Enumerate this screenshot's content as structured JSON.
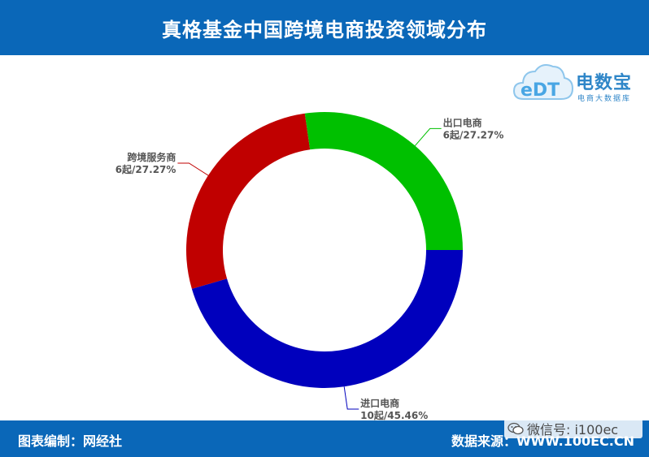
{
  "header": {
    "title": "真格基金中国跨境电商投资领域分布"
  },
  "footer": {
    "left": "图表编制：网经社",
    "right": "数据来源：WWW.100EC.CN"
  },
  "watermark": {
    "text": "微信号: i100ec",
    "icon": "wechat-icon"
  },
  "logo": {
    "name": "电数宝",
    "subtitle": "电商大数据库",
    "mark_text": "eDT",
    "icon": "cloud-icon"
  },
  "chart_data": {
    "type": "pie",
    "donut": true,
    "categories": [
      "进口电商",
      "跨境服务商",
      "出口电商"
    ],
    "values": [
      10,
      6,
      6
    ],
    "units": "起",
    "labels": [
      {
        "name": "进口电商",
        "value_text": "10起/45.46%"
      },
      {
        "name": "跨境服务商",
        "value_text": "6起/27.27%"
      },
      {
        "name": "出口电商",
        "value_text": "6起/27.27%"
      }
    ],
    "colors": [
      "#0000bd",
      "#c00000",
      "#00c000"
    ],
    "start_angle_deg": 90
  }
}
